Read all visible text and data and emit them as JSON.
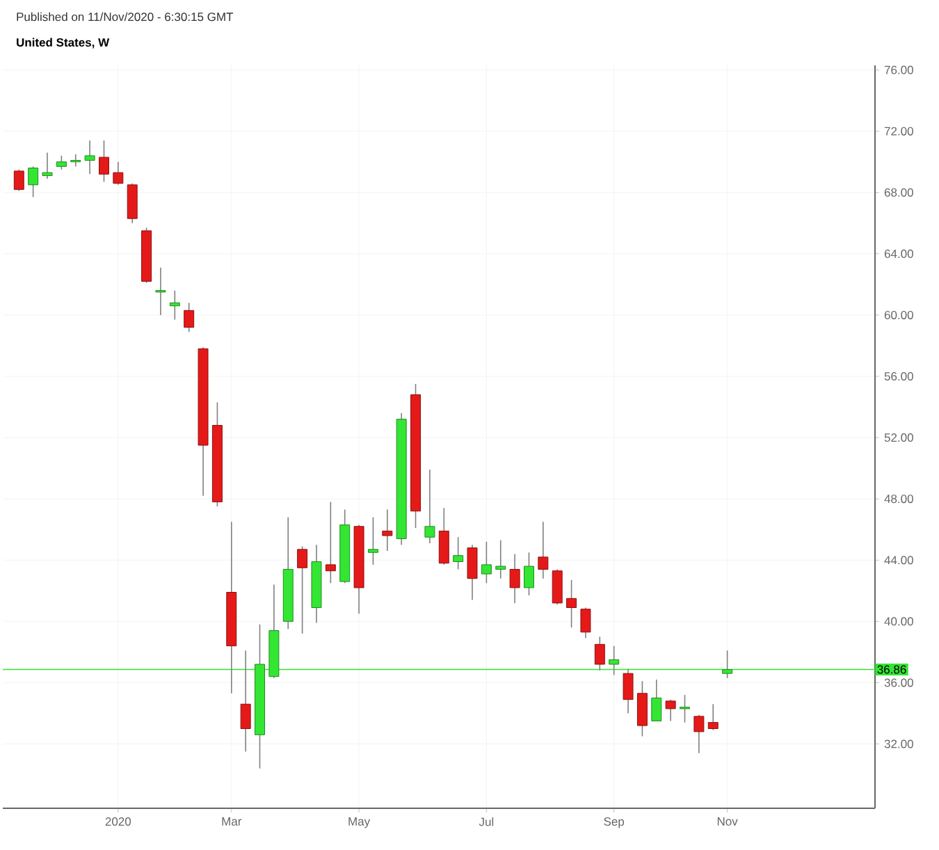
{
  "chart_data": {
    "type": "candlestick",
    "title": "United States, W",
    "annotations": [
      "Published on 11/Nov/2020 - 6:30:15 GMT"
    ],
    "x": [
      "2019-11-18",
      "2019-11-25",
      "2019-12-02",
      "2019-12-09",
      "2019-12-16",
      "2019-12-23",
      "2019-12-30",
      "2020-01-06",
      "2020-01-13",
      "2020-01-20",
      "2020-01-27",
      "2020-02-03",
      "2020-02-10",
      "2020-02-17",
      "2020-02-24",
      "2020-03-02",
      "2020-03-09",
      "2020-03-16",
      "2020-03-23",
      "2020-03-30",
      "2020-04-06",
      "2020-04-13",
      "2020-04-20",
      "2020-04-27",
      "2020-05-04",
      "2020-05-11",
      "2020-05-18",
      "2020-05-25",
      "2020-06-01",
      "2020-06-08",
      "2020-06-15",
      "2020-06-22",
      "2020-06-29",
      "2020-07-06",
      "2020-07-13",
      "2020-07-20",
      "2020-07-27",
      "2020-08-03",
      "2020-08-10",
      "2020-08-17",
      "2020-08-24",
      "2020-08-31",
      "2020-09-07",
      "2020-09-14",
      "2020-09-21",
      "2020-09-28",
      "2020-10-05",
      "2020-10-12",
      "2020-10-19",
      "2020-10-26",
      "2020-11-02"
    ],
    "ohlc": [
      [
        69.4,
        69.5,
        68.1,
        68.2
      ],
      [
        68.5,
        69.7,
        67.7,
        69.6
      ],
      [
        69.1,
        70.6,
        68.9,
        69.3
      ],
      [
        69.7,
        70.4,
        69.5,
        70.0
      ],
      [
        70.0,
        70.5,
        69.7,
        70.1
      ],
      [
        70.1,
        71.4,
        69.2,
        70.4
      ],
      [
        70.3,
        71.4,
        68.7,
        69.2
      ],
      [
        69.3,
        70.0,
        68.5,
        68.6
      ],
      [
        68.5,
        68.6,
        66.0,
        66.3
      ],
      [
        65.5,
        65.7,
        62.1,
        62.2
      ],
      [
        61.5,
        63.1,
        60.0,
        61.6
      ],
      [
        60.6,
        61.6,
        59.7,
        60.8
      ],
      [
        60.3,
        60.8,
        58.9,
        59.2
      ],
      [
        57.8,
        57.9,
        48.2,
        51.5
      ],
      [
        52.8,
        54.3,
        47.5,
        47.8
      ],
      [
        41.9,
        46.5,
        35.3,
        38.4
      ],
      [
        34.6,
        38.1,
        31.5,
        33.0
      ],
      [
        32.6,
        39.8,
        30.4,
        37.2
      ],
      [
        36.4,
        42.4,
        36.3,
        39.4
      ],
      [
        40.0,
        46.8,
        39.5,
        43.4
      ],
      [
        44.7,
        44.9,
        39.2,
        43.5
      ],
      [
        40.9,
        45.0,
        39.9,
        43.9
      ],
      [
        43.7,
        47.8,
        42.5,
        43.3
      ],
      [
        42.6,
        47.3,
        42.5,
        46.3
      ],
      [
        46.2,
        46.3,
        40.5,
        42.2
      ],
      [
        44.5,
        46.8,
        43.7,
        44.7
      ],
      [
        45.9,
        47.3,
        44.6,
        45.6
      ],
      [
        45.4,
        53.6,
        45.0,
        53.2
      ],
      [
        54.8,
        55.5,
        46.1,
        47.2
      ],
      [
        45.5,
        49.9,
        45.1,
        46.2
      ],
      [
        45.9,
        47.4,
        43.7,
        43.8
      ],
      [
        43.9,
        45.5,
        43.4,
        44.3
      ],
      [
        44.8,
        45.0,
        41.4,
        42.8
      ],
      [
        43.1,
        45.2,
        42.5,
        43.7
      ],
      [
        43.4,
        45.3,
        42.8,
        43.6
      ],
      [
        43.4,
        44.4,
        41.2,
        42.2
      ],
      [
        42.2,
        44.5,
        41.7,
        43.6
      ],
      [
        44.2,
        46.5,
        42.8,
        43.4
      ],
      [
        43.3,
        43.4,
        41.1,
        41.2
      ],
      [
        41.5,
        42.7,
        39.6,
        40.9
      ],
      [
        40.8,
        40.9,
        38.9,
        39.3
      ],
      [
        38.5,
        39.0,
        36.8,
        37.2
      ],
      [
        37.2,
        38.4,
        36.5,
        37.5
      ],
      [
        36.6,
        36.9,
        34.0,
        34.9
      ],
      [
        35.3,
        36.1,
        32.5,
        33.2
      ],
      [
        33.5,
        36.2,
        33.5,
        35.0
      ],
      [
        34.8,
        34.9,
        33.5,
        34.3
      ],
      [
        34.3,
        35.2,
        33.4,
        34.4
      ],
      [
        33.8,
        33.9,
        31.4,
        32.8
      ],
      [
        33.4,
        34.6,
        32.9,
        33.0
      ],
      [
        36.6,
        38.1,
        36.3,
        36.86
      ]
    ],
    "colors": [
      "#e61919",
      "#33e633",
      "#33e633",
      "#33e633",
      "#33e633",
      "#33e633",
      "#e61919",
      "#e61919",
      "#e61919",
      "#e61919",
      "#33e633",
      "#33e633",
      "#e61919",
      "#e61919",
      "#e61919",
      "#e61919",
      "#e61919",
      "#33e633",
      "#33e633",
      "#33e633",
      "#e61919",
      "#33e633",
      "#e61919",
      "#33e633",
      "#e61919",
      "#33e633",
      "#e61919",
      "#33e633",
      "#e61919",
      "#33e633",
      "#e61919",
      "#33e633",
      "#e61919",
      "#33e633",
      "#33e633",
      "#e61919",
      "#33e633",
      "#e61919",
      "#e61919",
      "#e61919",
      "#e61919",
      "#e61919",
      "#33e633",
      "#e61919",
      "#e61919",
      "#33e633",
      "#e61919",
      "#33e633",
      "#e61919",
      "#e61919",
      "#33e633"
    ],
    "xlim": [
      "2019-11-10",
      "2021-01-14"
    ],
    "xticks": [
      {
        "value": "2020-01-06",
        "label": "2020"
      },
      {
        "value": "2020-03-02",
        "label": "Mar"
      },
      {
        "value": "2020-05-04",
        "label": "May"
      },
      {
        "value": "2020-07-06",
        "label": "Jul"
      },
      {
        "value": "2020-09-07",
        "label": "Sep"
      },
      {
        "value": "2020-11-02",
        "label": "Nov"
      }
    ],
    "ylim": [
      27.8,
      76.3
    ],
    "yticks": [
      {
        "value": 32,
        "label": "32.00"
      },
      {
        "value": 36,
        "label": "36.00"
      },
      {
        "value": 40,
        "label": "40.00"
      },
      {
        "value": 44,
        "label": "44.00"
      },
      {
        "value": 48,
        "label": "48.00"
      },
      {
        "value": 52,
        "label": "52.00"
      },
      {
        "value": 56,
        "label": "56.00"
      },
      {
        "value": 60,
        "label": "60.00"
      },
      {
        "value": 64,
        "label": "64.00"
      },
      {
        "value": 68,
        "label": "68.00"
      },
      {
        "value": 72,
        "label": "72.00"
      },
      {
        "value": 76,
        "label": "76.00"
      }
    ],
    "ref_lines": [
      {
        "axis": "y",
        "value": 36.86,
        "label": "36.86",
        "color": "#33e633"
      }
    ],
    "grid": true
  }
}
